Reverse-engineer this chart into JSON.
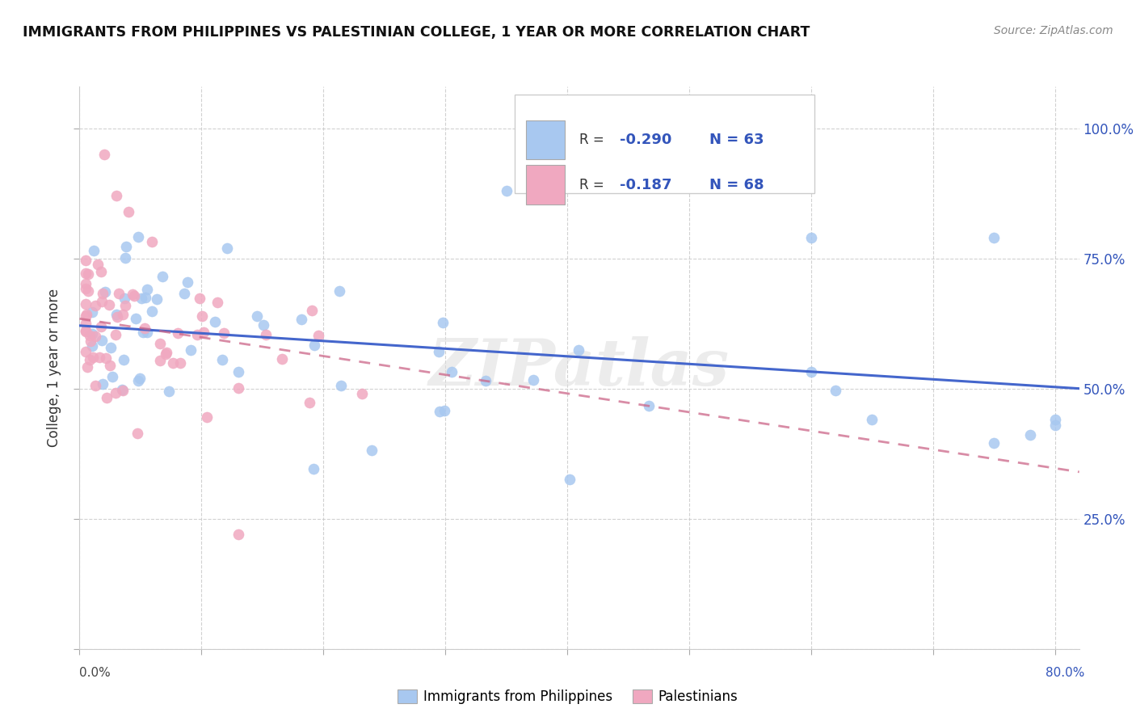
{
  "title": "IMMIGRANTS FROM PHILIPPINES VS PALESTINIAN COLLEGE, 1 YEAR OR MORE CORRELATION CHART",
  "source": "Source: ZipAtlas.com",
  "ylabel": "College, 1 year or more",
  "blue_color": "#a8c8f0",
  "pink_color": "#f0a8c0",
  "blue_line_color": "#4466cc",
  "pink_line_color": "#cc6688",
  "text_color_blue": "#3355bb",
  "text_color_dark": "#333333",
  "grid_color": "#cccccc",
  "watermark": "ZIPatlas",
  "R_blue": -0.29,
  "R_pink": -0.187,
  "N_blue": 63,
  "N_pink": 68,
  "xlim": [
    0.0,
    0.82
  ],
  "ylim": [
    0.0,
    1.08
  ],
  "yticks": [
    0.0,
    0.25,
    0.5,
    0.75,
    1.0
  ],
  "xticks": [
    0.0,
    0.1,
    0.2,
    0.3,
    0.4,
    0.5,
    0.6,
    0.7,
    0.8
  ]
}
